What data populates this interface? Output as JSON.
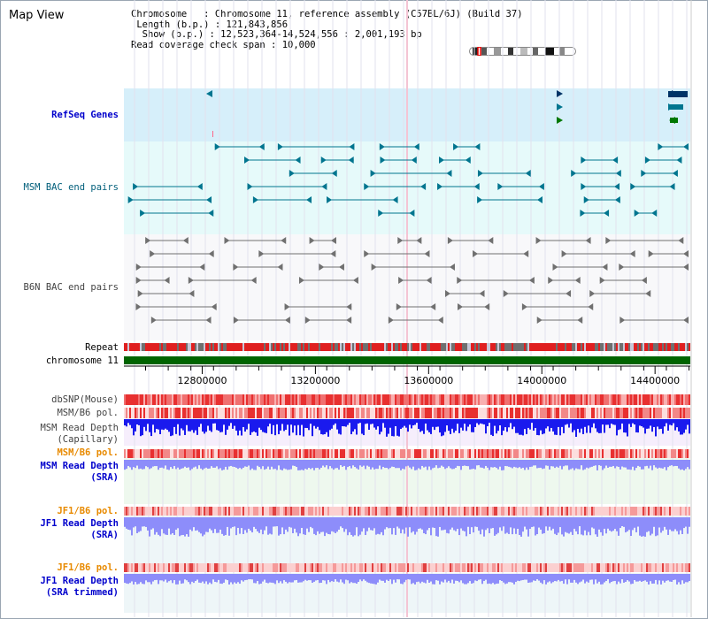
{
  "title": "Map View",
  "info": {
    "chromosome_label": "Chromosome",
    "chromosome_value": "Chromosome 11, reference assembly (C57BL/6J) (Build 37)",
    "length_label": "Length (b.p.)",
    "length_value": "121,843,856",
    "show_label": "Show (b.p.)",
    "show_value": "12,523,364-14,524,556 : 2,001,193 bp",
    "coverage_label": "Read coverage check span",
    "coverage_value": "10,000"
  },
  "tracks": {
    "refseq": "RefSeq Genes",
    "msm_bac": "MSM BAC end pairs",
    "b6n_bac": "B6N BAC end pairs",
    "repeat": "Repeat",
    "chromosome": "chromosome 11",
    "dbsnp": "dbSNP(Mouse)",
    "msm_b6_pol_1": "MSM/B6 pol.",
    "msm_read_depth_cap_1": "MSM Read Depth",
    "msm_read_depth_cap_2": "(Capillary)",
    "msm_b6_pol_2": "MSM/B6 pol.",
    "msm_read_depth_sra_1": "MSM Read Depth",
    "msm_read_depth_sra_2": "(SRA)",
    "jf1_b6_pol_1": "JF1/B6 pol.",
    "jf1_read_depth_sra_1": "JF1 Read Depth",
    "jf1_read_depth_sra_2": "(SRA)",
    "jf1_b6_pol_2": "JF1/B6 pol.",
    "jf1_read_depth_trim_1": "JF1 Read Depth",
    "jf1_read_depth_trim_2": "(SRA trimmed)"
  },
  "axis": {
    "ticks": [
      "12800000",
      "13200000",
      "13600000",
      "14000000",
      "14400000"
    ],
    "tick_values": [
      12800000,
      13200000,
      13600000,
      14000000,
      14400000
    ],
    "start": 12523364,
    "end": 14524556
  },
  "colors": {
    "refseq_bg": "#d6effa",
    "msm_bac_bg": "#e6fafa",
    "b6n_bac_bg": "#f8f8fa",
    "msm_color": "#00758f",
    "b6n_color": "#707070",
    "chromosome_bar": "#006400",
    "snp_red": "#e82020",
    "depth_blue": "#1a1aee",
    "depth_light_blue": "#8d8dfa",
    "pol_orange": "#e88a00",
    "label_blue": "#0000cc"
  }
}
